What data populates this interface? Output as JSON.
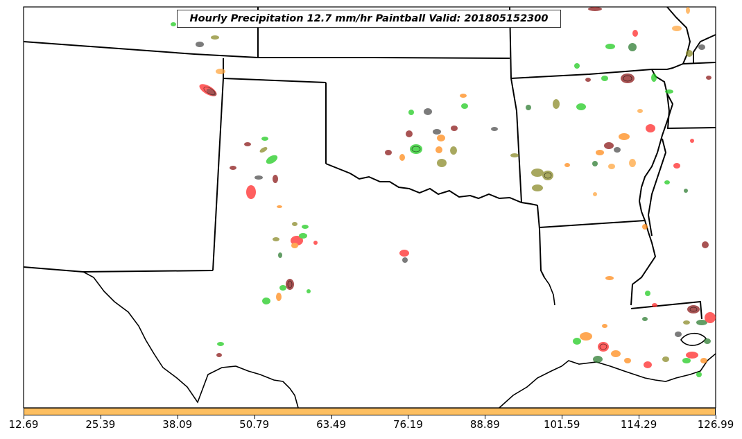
{
  "title": "Hourly Precipitation 12.7 mm/hr Paintball Valid: 201805152300",
  "colorbar": {
    "color": "#fdbf61",
    "tick_labels": [
      "12.69",
      "25.39",
      "38.09",
      "50.79",
      "63.49",
      "76.19",
      "88.89",
      "101.59",
      "114.29",
      "126.99"
    ]
  },
  "legend_colors": {
    "red": "#ff2a2a",
    "dark_red": "#8b1a1a",
    "green": "#22cc22",
    "dark_green": "#2e7d32",
    "olive": "#8b8b2a",
    "orange": "#ff8c1a",
    "light_orange": "#ffa640",
    "gray": "#505050"
  }
}
